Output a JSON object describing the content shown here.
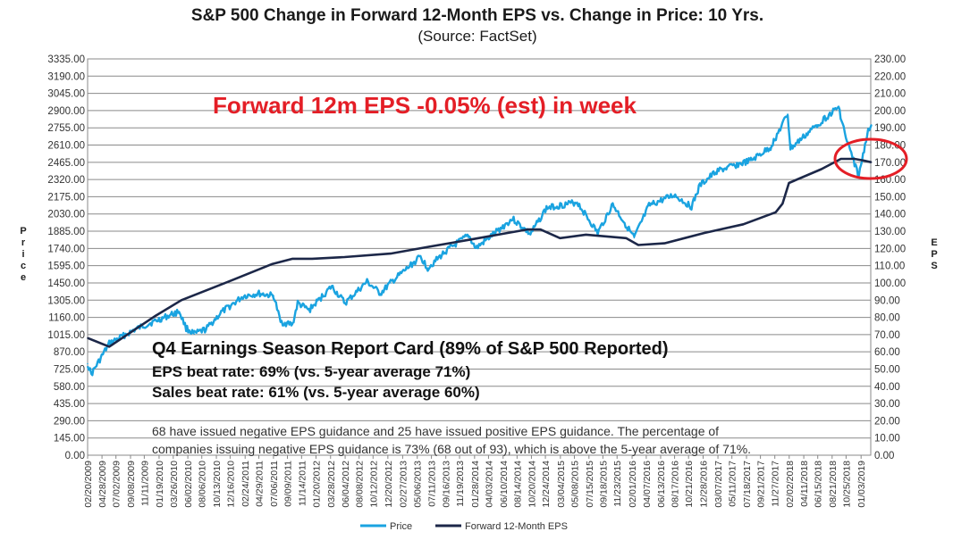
{
  "chart_data": {
    "type": "line",
    "title": "S&P 500 Change in Forward 12-Month EPS vs. Change in Price: 10 Yrs.",
    "subtitle": "(Source: FactSet)",
    "ylabel_left": "Price",
    "ylabel_right": "EPS",
    "ylim_left": [
      0,
      3335
    ],
    "ylim_right": [
      0,
      230
    ],
    "left_ticks": [
      "0.00",
      "145.00",
      "290.00",
      "435.00",
      "580.00",
      "725.00",
      "870.00",
      "1015.00",
      "1160.00",
      "1305.00",
      "1450.00",
      "1595.00",
      "1740.00",
      "1885.00",
      "2030.00",
      "2175.00",
      "2320.00",
      "2465.00",
      "2610.00",
      "2755.00",
      "2900.00",
      "3045.00",
      "3190.00",
      "3335.00"
    ],
    "right_ticks": [
      "0.00",
      "10.00",
      "20.00",
      "30.00",
      "40.00",
      "50.00",
      "60.00",
      "70.00",
      "80.00",
      "90.00",
      "100.00",
      "110.00",
      "120.00",
      "130.00",
      "140.00",
      "150.00",
      "160.00",
      "170.00",
      "180.00",
      "190.00",
      "200.00",
      "210.00",
      "220.00",
      "230.00"
    ],
    "x_dates": [
      "02/20/2009",
      "04/28/2009",
      "07/02/2009",
      "09/08/2009",
      "11/11/2009",
      "01/19/2010",
      "03/26/2010",
      "06/02/2010",
      "08/06/2010",
      "10/13/2010",
      "12/16/2010",
      "02/24/2011",
      "04/29/2011",
      "07/06/2011",
      "09/09/2011",
      "11/14/2011",
      "01/20/2012",
      "03/28/2012",
      "06/04/2012",
      "08/08/2012",
      "10/12/2012",
      "12/20/2012",
      "02/27/2013",
      "05/06/2013",
      "07/11/2013",
      "09/16/2013",
      "11/19/2013",
      "01/28/2014",
      "04/03/2014",
      "06/10/2014",
      "08/14/2014",
      "10/20/2014",
      "12/24/2014",
      "03/04/2015",
      "05/08/2015",
      "07/15/2015",
      "09/18/2015",
      "11/23/2015",
      "02/01/2016",
      "04/07/2016",
      "06/13/2016",
      "08/17/2016",
      "10/21/2016",
      "12/28/2016",
      "03/07/2017",
      "05/11/2017",
      "07/18/2017",
      "09/21/2017",
      "11/27/2017",
      "02/02/2018",
      "04/11/2018",
      "06/15/2018",
      "08/21/2018",
      "10/25/2018",
      "01/03/2019"
    ],
    "series": [
      {
        "name": "Price",
        "axis": "left",
        "color": "#1aa3e0",
        "x": [
          "02/20/2009",
          "03/09/2009",
          "06/01/2009",
          "10/01/2009",
          "01/04/2010",
          "04/23/2010",
          "05/25/2010",
          "07/02/2010",
          "08/26/2010",
          "11/04/2010",
          "02/18/2011",
          "04/29/2011",
          "07/07/2011",
          "08/08/2011",
          "10/03/2011",
          "10/27/2011",
          "12/19/2011",
          "04/02/2012",
          "06/04/2012",
          "09/14/2012",
          "11/15/2012",
          "01/02/2013",
          "05/21/2013",
          "06/24/2013",
          "09/18/2013",
          "12/31/2013",
          "02/03/2014",
          "07/24/2014",
          "10/15/2014",
          "12/29/2014",
          "05/21/2015",
          "08/25/2015",
          "11/03/2015",
          "02/11/2016",
          "04/20/2016",
          "08/15/2016",
          "11/04/2016",
          "12/13/2016",
          "03/01/2017",
          "08/08/2017",
          "11/07/2017",
          "01/26/2018",
          "02/08/2018",
          "06/12/2018",
          "09/20/2018",
          "10/29/2018",
          "12/24/2018",
          "01/31/2019",
          "02/20/2019"
        ],
        "y": [
          770,
          680,
          940,
          1060,
          1130,
          1210,
          1070,
          1020,
          1060,
          1200,
          1340,
          1360,
          1340,
          1120,
          1100,
          1280,
          1220,
          1420,
          1280,
          1460,
          1360,
          1450,
          1670,
          1575,
          1720,
          1850,
          1740,
          1990,
          1860,
          2080,
          2130,
          1870,
          2110,
          1830,
          2100,
          2190,
          2090,
          2270,
          2390,
          2480,
          2590,
          2870,
          2580,
          2780,
          2930,
          2640,
          2350,
          2705,
          2780
        ]
      },
      {
        "name": "Forward 12-Month EPS",
        "axis": "right",
        "color": "#1c2748",
        "x": [
          "02/20/2009",
          "06/01/2009",
          "01/04/2010",
          "05/03/2010",
          "01/03/2011",
          "07/01/2011",
          "10/03/2011",
          "01/03/2012",
          "06/01/2012",
          "01/02/2013",
          "07/01/2013",
          "01/02/2014",
          "07/01/2014",
          "10/01/2014",
          "12/01/2014",
          "03/02/2015",
          "07/01/2015",
          "01/04/2016",
          "03/01/2016",
          "07/01/2016",
          "01/03/2017",
          "07/03/2017",
          "12/01/2017",
          "01/02/2018",
          "02/01/2018",
          "07/02/2018",
          "10/01/2018",
          "12/03/2018",
          "01/15/2019",
          "02/20/2019"
        ],
        "y": [
          68,
          63,
          81,
          90,
          102,
          111,
          114,
          114,
          115,
          117,
          121,
          125,
          129,
          131,
          131,
          126,
          128,
          126,
          122,
          123,
          129,
          134,
          141,
          146,
          158,
          166,
          172,
          172,
          171,
          170
        ]
      }
    ],
    "legend": [
      "Price",
      "Forward 12-Month EPS"
    ],
    "legend_position": "bottom",
    "grid": "horizontal",
    "annotations": {
      "headline": "Forward 12m EPS -0.05% (est) in week",
      "headline_color": "#e41e26",
      "circle_color": "#e41e26",
      "card_title": "Q4 Earnings Season Report Card (89% of S&P 500 Reported)",
      "card_lines": [
        "EPS beat rate: 69% (vs. 5-year average 71%)",
        "Sales beat rate: 61% (vs. 5-year average 60%)"
      ],
      "note_lines": [
        "68 have issued negative EPS guidance and 25 have issued positive EPS guidance. The percentage of",
        "companies issuing negative EPS guidance is 73% (68 out of 93), which is above the 5-year average of 71%."
      ]
    }
  }
}
